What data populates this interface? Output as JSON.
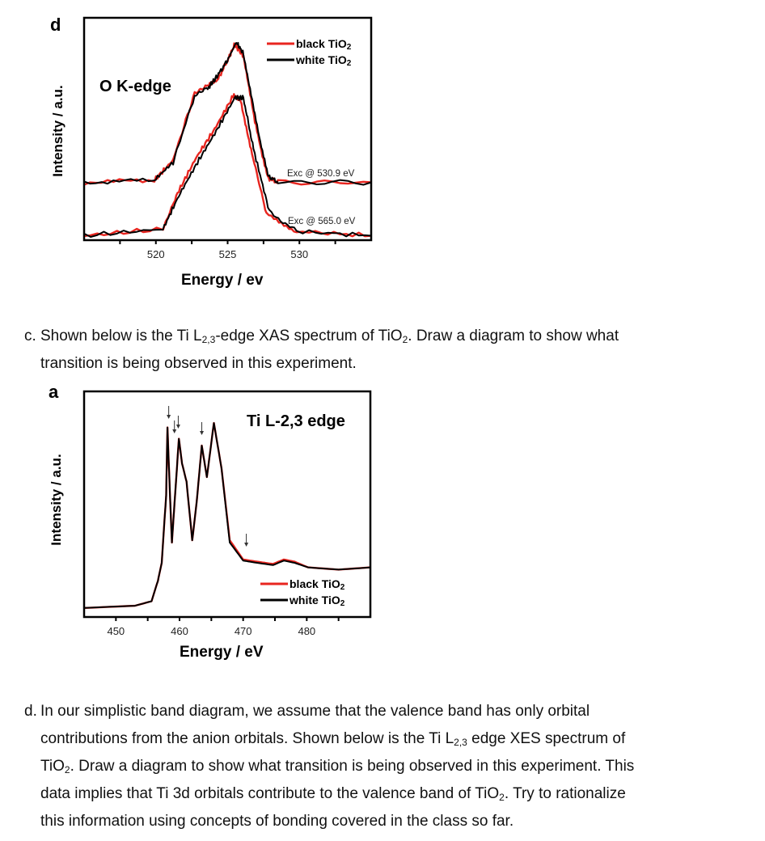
{
  "colors": {
    "black_tio2": "#e8251f",
    "white_tio2": "#000000",
    "frame": "#000000"
  },
  "figure_d": {
    "panel_letter": "d",
    "ylabel": "Intensity / a.u.",
    "xlabel": "Energy / ev",
    "label": "O K-edge",
    "annotations": [
      "Exc @ 530.9 eV",
      "Exc @ 565.0 eV"
    ]
  },
  "figure_a": {
    "panel_letter": "a",
    "ylabel": "Intensity / a.u.",
    "xlabel": "Energy / eV",
    "label": "Ti L-2,3 edge"
  },
  "question_c": {
    "marker": "c.",
    "lines": [
      [
        [
          "Shown below is the Ti L"
        ],
        [
          "2,3",
          "sub"
        ],
        [
          "-edge XAS spectrum of TiO"
        ],
        [
          "2",
          "sub"
        ],
        [
          ". Draw a diagram to show what"
        ]
      ],
      [
        [
          "transition is being observed in this experiment."
        ]
      ]
    ]
  },
  "question_d": {
    "marker": "d.",
    "lines": [
      [
        [
          "In our simplistic band diagram, we assume that the valence band has only orbital"
        ]
      ],
      [
        [
          "contributions from the anion orbitals. Shown below is the Ti L"
        ],
        [
          "2,3",
          "sub"
        ],
        [
          " edge XES spectrum of"
        ]
      ],
      [
        [
          "TiO"
        ],
        [
          "2",
          "sub"
        ],
        [
          ". Draw a diagram to show what transition is being observed in this experiment. This"
        ]
      ],
      [
        [
          "data implies that Ti 3d orbitals contribute to the valence band of TiO"
        ],
        [
          "2",
          "sub"
        ],
        [
          ". Try to rationalize"
        ]
      ],
      [
        [
          "this information using concepts of bonding covered in the class so far."
        ]
      ]
    ]
  },
  "chart_data": [
    {
      "type": "line",
      "title": "O K-edge",
      "xlabel": "Energy / ev",
      "ylabel": "Intensity / a.u.",
      "xlim": [
        515,
        535
      ],
      "ylim": [
        0,
        1
      ],
      "xticks": [
        520,
        525,
        530
      ],
      "minor_xticks": [
        517.5,
        522.5,
        527.5,
        532.5
      ],
      "grid": false,
      "legend": {
        "placement": "top-right",
        "entries": [
          "black TiO2",
          "white TiO2"
        ]
      },
      "series": [
        {
          "name": "black TiO2",
          "group": "Exc @ 530.9 eV",
          "color": "#e8251f",
          "x": [
            515,
            519.9,
            521.2,
            522.7,
            523.7,
            524.3,
            525.0,
            525.5,
            526.1,
            526.9,
            527.8,
            528.5,
            535
          ],
          "y": [
            0.26,
            0.27,
            0.36,
            0.66,
            0.7,
            0.72,
            0.81,
            0.88,
            0.83,
            0.53,
            0.28,
            0.26,
            0.26
          ]
        },
        {
          "name": "white TiO2",
          "group": "Exc @ 530.9 eV",
          "color": "#000000",
          "x": [
            515,
            519.9,
            521.2,
            522.7,
            523.7,
            524.3,
            525.0,
            525.6,
            526.1,
            526.9,
            527.8,
            528.5,
            535
          ],
          "y": [
            0.26,
            0.27,
            0.35,
            0.65,
            0.69,
            0.74,
            0.81,
            0.89,
            0.84,
            0.56,
            0.29,
            0.26,
            0.26
          ]
        },
        {
          "name": "black TiO2",
          "group": "Exc @ 565.0 eV",
          "color": "#e8251f",
          "x": [
            515,
            520.5,
            521.5,
            522.8,
            524.1,
            525.4,
            525.9,
            526.7,
            527.7,
            529.8,
            535
          ],
          "y": [
            0.02,
            0.05,
            0.21,
            0.37,
            0.5,
            0.65,
            0.63,
            0.39,
            0.12,
            0.04,
            0.02
          ]
        },
        {
          "name": "white TiO2",
          "group": "Exc @ 565.0 eV",
          "color": "#000000",
          "x": [
            515,
            520.5,
            521.6,
            522.9,
            524.2,
            525.5,
            526.1,
            526.8,
            527.9,
            529.8,
            535
          ],
          "y": [
            0.02,
            0.05,
            0.2,
            0.35,
            0.49,
            0.64,
            0.64,
            0.41,
            0.13,
            0.04,
            0.02
          ]
        }
      ]
    },
    {
      "type": "line",
      "title": "Ti L-2,3 edge",
      "xlabel": "Energy / eV",
      "ylabel": "Intensity / a.u.",
      "xlim": [
        445,
        490
      ],
      "ylim": [
        0,
        1
      ],
      "xticks": [
        450,
        460,
        470,
        480
      ],
      "minor_xticks": [
        455,
        465,
        475,
        485
      ],
      "grid": false,
      "legend": {
        "placement": "bottom-right",
        "entries": [
          "black TiO2",
          "white TiO2"
        ]
      },
      "arrows_at_energy": [
        458.3,
        459.2,
        459.8,
        463.5,
        470.5
      ],
      "series": [
        {
          "name": "black TiO2",
          "color": "#e8251f",
          "x": [
            445,
            453,
            455.6,
            456.6,
            457.2,
            457.9,
            458.1,
            458.5,
            458.8,
            459.3,
            459.9,
            460.4,
            461.1,
            462,
            462.7,
            463.5,
            464.3,
            465.4,
            466.6,
            467.9,
            470,
            472.2,
            474.7,
            476.4,
            478.1,
            480.2,
            485,
            490
          ],
          "y": [
            0.04,
            0.05,
            0.07,
            0.16,
            0.24,
            0.54,
            0.84,
            0.54,
            0.33,
            0.54,
            0.79,
            0.68,
            0.6,
            0.34,
            0.51,
            0.76,
            0.62,
            0.86,
            0.66,
            0.34,
            0.255,
            0.245,
            0.235,
            0.255,
            0.245,
            0.22,
            0.21,
            0.22
          ]
        },
        {
          "name": "white TiO2",
          "color": "#000000",
          "x": [
            445,
            453,
            455.6,
            456.6,
            457.2,
            457.9,
            458.1,
            458.5,
            458.8,
            459.3,
            459.9,
            460.4,
            461.1,
            462,
            462.7,
            463.5,
            464.3,
            465.4,
            466.6,
            467.9,
            470,
            472.2,
            474.7,
            476.4,
            478.1,
            480.2,
            485,
            490
          ],
          "y": [
            0.04,
            0.05,
            0.07,
            0.16,
            0.24,
            0.54,
            0.84,
            0.54,
            0.33,
            0.54,
            0.79,
            0.68,
            0.6,
            0.34,
            0.51,
            0.76,
            0.62,
            0.86,
            0.66,
            0.33,
            0.25,
            0.24,
            0.23,
            0.25,
            0.24,
            0.22,
            0.21,
            0.22
          ]
        }
      ]
    }
  ]
}
